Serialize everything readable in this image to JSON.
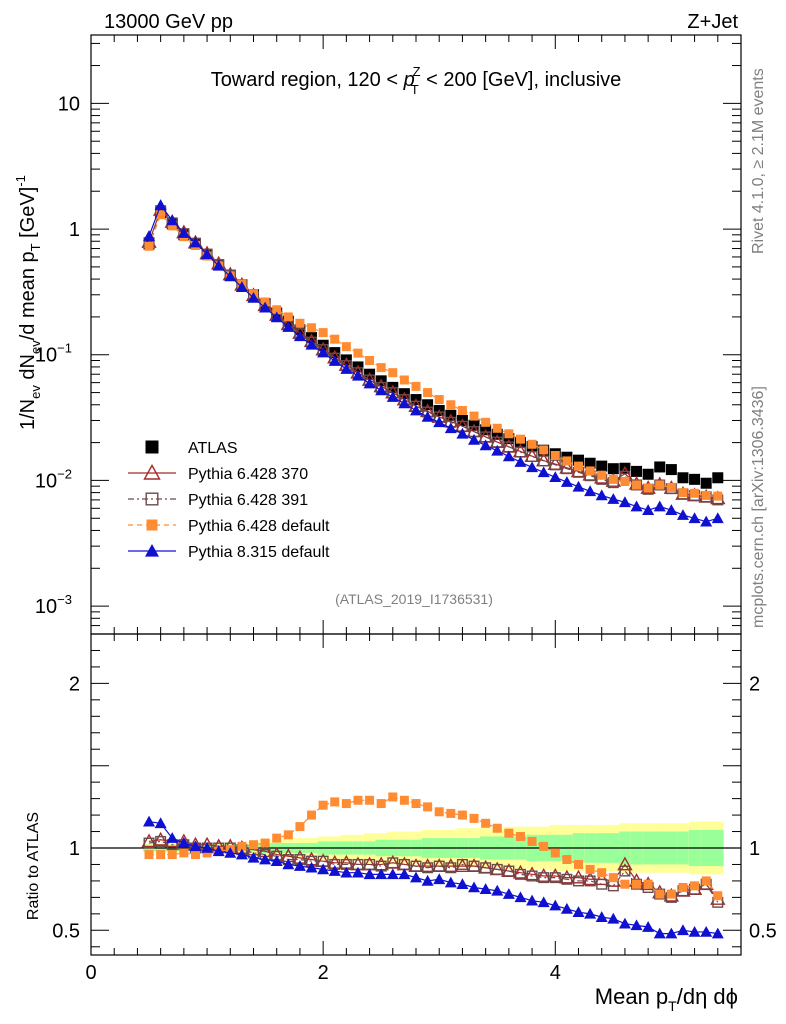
{
  "header": {
    "left": "13000 GeV pp",
    "right": "Z+Jet"
  },
  "main_title": "Toward region, 120 < p_T^Z < 200 [GeV], inclusive",
  "side_text": {
    "rivet": "Rivet 4.1.0, ≥ 2.1M events",
    "mcplots": "mcplots.cern.ch [arXiv:1306.3436]"
  },
  "analysis_tag": "(ATLAS_2019_I1736531)",
  "colors": {
    "data": "#000000",
    "p6_370": "#a52a2a",
    "p6_391": "#6b4a4a",
    "p6_default": "#ff8c33",
    "p8_default": "#1010d0",
    "band_outer": "#ffff99",
    "band_inner": "#99ff99"
  },
  "chart_data": [
    {
      "type": "line",
      "title": "Toward region, 120 < p_T^Z < 200 [GeV], inclusive",
      "xlabel": "Mean p_T/dη dφ",
      "ylabel": "1/N_ev dN_ev/d mean p_T [GeV]^-1",
      "yscale": "log",
      "xlim": [
        0,
        5.6
      ],
      "ylim": [
        0.0006,
        35
      ],
      "x": [
        0.5,
        0.6,
        0.7,
        0.8,
        0.9,
        1.0,
        1.1,
        1.2,
        1.3,
        1.4,
        1.5,
        1.6,
        1.7,
        1.8,
        1.9,
        2.0,
        2.1,
        2.2,
        2.3,
        2.4,
        2.5,
        2.6,
        2.7,
        2.8,
        2.9,
        3.0,
        3.1,
        3.2,
        3.3,
        3.4,
        3.5,
        3.6,
        3.7,
        3.8,
        3.9,
        4.0,
        4.1,
        4.2,
        4.3,
        4.4,
        4.5,
        4.6,
        4.7,
        4.8,
        4.9,
        5.0,
        5.1,
        5.2,
        5.3,
        5.4
      ],
      "series": [
        {
          "name": "ATLAS",
          "marker": "filled-square",
          "values": [
            0.76,
            1.35,
            1.1,
            0.9,
            0.77,
            0.63,
            0.52,
            0.43,
            0.36,
            0.3,
            0.255,
            0.215,
            0.185,
            0.158,
            0.137,
            0.119,
            0.104,
            0.091,
            0.08,
            0.07,
            0.062,
            0.055,
            0.049,
            0.044,
            0.04,
            0.036,
            0.033,
            0.03,
            0.0275,
            0.0253,
            0.0233,
            0.0215,
            0.02,
            0.0186,
            0.0174,
            0.0163,
            0.0153,
            0.0145,
            0.0137,
            0.013,
            0.0124,
            0.0125,
            0.0118,
            0.0112,
            0.0128,
            0.0122,
            0.0105,
            0.0102,
            0.0095,
            0.0105
          ]
        },
        {
          "name": "Pythia 6.428 370",
          "marker": "open-triangle",
          "values": [
            0.79,
            1.42,
            1.14,
            0.94,
            0.78,
            0.64,
            0.53,
            0.435,
            0.36,
            0.297,
            0.248,
            0.207,
            0.175,
            0.149,
            0.128,
            0.11,
            0.095,
            0.083,
            0.072,
            0.063,
            0.056,
            0.05,
            0.044,
            0.039,
            0.0355,
            0.032,
            0.0295,
            0.027,
            0.0245,
            0.0222,
            0.0202,
            0.0185,
            0.017,
            0.0156,
            0.0144,
            0.0135,
            0.0126,
            0.0118,
            0.0111,
            0.0105,
            0.0099,
            0.0113,
            0.0094,
            0.0087,
            0.0093,
            0.0087,
            0.0078,
            0.0076,
            0.0074,
            0.0072
          ]
        },
        {
          "name": "Pythia 6.428 391",
          "marker": "open-square",
          "values": [
            0.78,
            1.4,
            1.12,
            0.92,
            0.77,
            0.63,
            0.52,
            0.43,
            0.355,
            0.29,
            0.245,
            0.205,
            0.172,
            0.147,
            0.126,
            0.11,
            0.094,
            0.082,
            0.072,
            0.063,
            0.055,
            0.05,
            0.044,
            0.039,
            0.035,
            0.032,
            0.029,
            0.027,
            0.0245,
            0.0222,
            0.0202,
            0.0185,
            0.0168,
            0.0155,
            0.0143,
            0.0133,
            0.0124,
            0.0116,
            0.0109,
            0.0102,
            0.0096,
            0.0108,
            0.0092,
            0.0085,
            0.0092,
            0.0086,
            0.0078,
            0.0076,
            0.0074,
            0.007
          ]
        },
        {
          "name": "Pythia 6.428 default",
          "marker": "filled-square-small",
          "values": [
            0.73,
            1.3,
            1.06,
            0.87,
            0.74,
            0.61,
            0.51,
            0.425,
            0.365,
            0.305,
            0.263,
            0.228,
            0.2,
            0.178,
            0.164,
            0.15,
            0.133,
            0.116,
            0.103,
            0.09,
            0.079,
            0.072,
            0.063,
            0.056,
            0.05,
            0.044,
            0.04,
            0.036,
            0.0325,
            0.029,
            0.026,
            0.0235,
            0.0213,
            0.0194,
            0.0175,
            0.0158,
            0.0143,
            0.013,
            0.0119,
            0.011,
            0.0102,
            0.0098,
            0.0092,
            0.0087,
            0.0092,
            0.0088,
            0.008,
            0.0079,
            0.0076,
            0.0075
          ]
        },
        {
          "name": "Pythia 8.315 default",
          "marker": "filled-triangle",
          "values": [
            0.88,
            1.55,
            1.17,
            0.93,
            0.78,
            0.63,
            0.51,
            0.42,
            0.345,
            0.283,
            0.237,
            0.198,
            0.166,
            0.14,
            0.12,
            0.104,
            0.089,
            0.077,
            0.068,
            0.059,
            0.052,
            0.046,
            0.041,
            0.036,
            0.032,
            0.029,
            0.026,
            0.0235,
            0.021,
            0.019,
            0.0172,
            0.0155,
            0.014,
            0.0127,
            0.0116,
            0.0106,
            0.0097,
            0.0089,
            0.0082,
            0.0076,
            0.0071,
            0.0067,
            0.0062,
            0.0058,
            0.0062,
            0.0058,
            0.0053,
            0.005,
            0.0047,
            0.005
          ]
        }
      ],
      "legend": [
        "ATLAS",
        "Pythia 6.428 370",
        "Pythia 6.428 391",
        "Pythia 6.428 default",
        "Pythia 8.315 default"
      ],
      "legend_position": "lower-left",
      "yticks": [
        {
          "value": 10,
          "label": "10"
        },
        {
          "value": 1,
          "label": "1"
        },
        {
          "value": 0.1,
          "label": "10",
          "exp": "−1"
        },
        {
          "value": 0.01,
          "label": "10",
          "exp": "−2"
        },
        {
          "value": 0.001,
          "label": "10",
          "exp": "−3"
        }
      ]
    },
    {
      "type": "line",
      "title": "",
      "xlabel": "Mean p_T/dη dφ",
      "ylabel": "Ratio to ATLAS",
      "xlim": [
        0,
        5.6
      ],
      "ylim": [
        0.35,
        2.3
      ],
      "x": [
        0.5,
        0.6,
        0.7,
        0.8,
        0.9,
        1.0,
        1.1,
        1.2,
        1.3,
        1.4,
        1.5,
        1.6,
        1.7,
        1.8,
        1.9,
        2.0,
        2.1,
        2.2,
        2.3,
        2.4,
        2.5,
        2.6,
        2.7,
        2.8,
        2.9,
        3.0,
        3.1,
        3.2,
        3.3,
        3.4,
        3.5,
        3.6,
        3.7,
        3.8,
        3.9,
        4.0,
        4.1,
        4.2,
        4.3,
        4.4,
        4.5,
        4.6,
        4.7,
        4.8,
        4.9,
        5.0,
        5.1,
        5.2,
        5.3,
        5.4
      ],
      "band_inner": [
        0.02,
        0.02,
        0.02,
        0.02,
        0.02,
        0.02,
        0.02,
        0.02,
        0.02,
        0.02,
        0.03,
        0.03,
        0.03,
        0.03,
        0.03,
        0.04,
        0.04,
        0.04,
        0.04,
        0.04,
        0.05,
        0.05,
        0.05,
        0.05,
        0.06,
        0.06,
        0.06,
        0.06,
        0.06,
        0.07,
        0.07,
        0.07,
        0.07,
        0.08,
        0.08,
        0.08,
        0.08,
        0.09,
        0.09,
        0.09,
        0.09,
        0.1,
        0.1,
        0.1,
        0.1,
        0.1,
        0.1,
        0.11,
        0.11,
        0.11
      ],
      "band_outer": [
        0.03,
        0.03,
        0.03,
        0.03,
        0.03,
        0.03,
        0.03,
        0.03,
        0.03,
        0.04,
        0.05,
        0.05,
        0.06,
        0.06,
        0.06,
        0.07,
        0.07,
        0.08,
        0.08,
        0.09,
        0.09,
        0.1,
        0.1,
        0.1,
        0.11,
        0.11,
        0.11,
        0.12,
        0.12,
        0.12,
        0.12,
        0.13,
        0.13,
        0.13,
        0.13,
        0.14,
        0.14,
        0.14,
        0.14,
        0.14,
        0.14,
        0.15,
        0.15,
        0.15,
        0.15,
        0.15,
        0.15,
        0.16,
        0.16,
        0.16
      ],
      "series": [
        {
          "name": "Pythia 6.428 370",
          "values": [
            1.04,
            1.05,
            1.04,
            1.04,
            1.02,
            1.02,
            1.01,
            1.01,
            1.0,
            0.99,
            0.98,
            0.96,
            0.95,
            0.94,
            0.93,
            0.92,
            0.91,
            0.91,
            0.9,
            0.9,
            0.9,
            0.91,
            0.9,
            0.89,
            0.89,
            0.89,
            0.89,
            0.89,
            0.89,
            0.88,
            0.87,
            0.86,
            0.85,
            0.84,
            0.83,
            0.83,
            0.82,
            0.82,
            0.81,
            0.81,
            0.8,
            0.9,
            0.8,
            0.78,
            0.73,
            0.71,
            0.74,
            0.75,
            0.78,
            0.69
          ]
        },
        {
          "name": "Pythia 6.428 391",
          "values": [
            1.03,
            1.04,
            1.02,
            1.02,
            1.0,
            1.0,
            1.0,
            1.0,
            0.99,
            0.97,
            0.96,
            0.95,
            0.93,
            0.93,
            0.92,
            0.92,
            0.9,
            0.9,
            0.9,
            0.9,
            0.89,
            0.91,
            0.9,
            0.89,
            0.88,
            0.89,
            0.88,
            0.9,
            0.89,
            0.88,
            0.87,
            0.86,
            0.84,
            0.83,
            0.82,
            0.82,
            0.81,
            0.8,
            0.8,
            0.78,
            0.77,
            0.86,
            0.78,
            0.76,
            0.72,
            0.7,
            0.74,
            0.75,
            0.78,
            0.67
          ]
        },
        {
          "name": "Pythia 6.428 default",
          "values": [
            0.96,
            0.96,
            0.96,
            0.97,
            0.96,
            0.97,
            0.98,
            0.99,
            1.01,
            1.02,
            1.03,
            1.06,
            1.08,
            1.13,
            1.2,
            1.26,
            1.28,
            1.27,
            1.29,
            1.29,
            1.27,
            1.31,
            1.29,
            1.27,
            1.25,
            1.22,
            1.21,
            1.2,
            1.18,
            1.15,
            1.12,
            1.09,
            1.07,
            1.04,
            1.01,
            0.97,
            0.93,
            0.9,
            0.87,
            0.85,
            0.82,
            0.78,
            0.78,
            0.78,
            0.72,
            0.72,
            0.76,
            0.77,
            0.8,
            0.71
          ]
        },
        {
          "name": "Pythia 8.315 default",
          "values": [
            1.16,
            1.15,
            1.06,
            1.03,
            1.01,
            1.0,
            0.98,
            0.97,
            0.96,
            0.94,
            0.93,
            0.92,
            0.9,
            0.89,
            0.88,
            0.87,
            0.86,
            0.85,
            0.85,
            0.84,
            0.84,
            0.84,
            0.84,
            0.82,
            0.8,
            0.81,
            0.79,
            0.78,
            0.76,
            0.75,
            0.74,
            0.72,
            0.7,
            0.68,
            0.67,
            0.65,
            0.63,
            0.61,
            0.6,
            0.58,
            0.57,
            0.54,
            0.53,
            0.52,
            0.48,
            0.48,
            0.5,
            0.49,
            0.49,
            0.48
          ]
        }
      ],
      "yticks": [
        {
          "value": 0.5,
          "label": "0.5"
        },
        {
          "value": 1,
          "label": "1"
        },
        {
          "value": 2,
          "label": "2"
        }
      ],
      "xticks": [
        {
          "value": 0,
          "label": "0"
        },
        {
          "value": 2,
          "label": "2"
        },
        {
          "value": 4,
          "label": "4"
        }
      ]
    }
  ]
}
